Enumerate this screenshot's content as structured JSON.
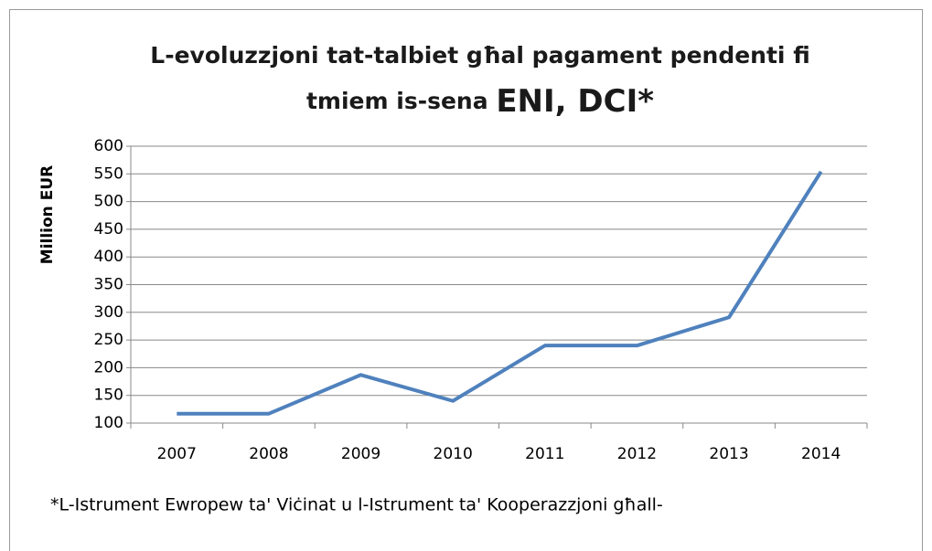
{
  "chart_data": {
    "type": "line",
    "title": "L-evoluzzjoni tat-talbiet għal pagament pendenti fi",
    "title_line2": "tmiem is-sena",
    "title_emphasis": "ENI, DCI*",
    "y_label": "Million EUR",
    "footnote": "*L-Istrument Ewropew ta' Viċinat u l-Istrument ta' Kooperazzjoni għall-",
    "categories": [
      "2007",
      "2008",
      "2009",
      "2010",
      "2011",
      "2012",
      "2013",
      "2014"
    ],
    "series": [
      {
        "name": "Million EUR",
        "color": "#4f81bd",
        "values": [
          117,
          117,
          187,
          140,
          240,
          240,
          291,
          554
        ]
      }
    ],
    "ylim": [
      100,
      600
    ],
    "yticks": [
      100,
      150,
      200,
      250,
      300,
      350,
      400,
      450,
      500,
      550,
      600
    ],
    "grid": true
  }
}
